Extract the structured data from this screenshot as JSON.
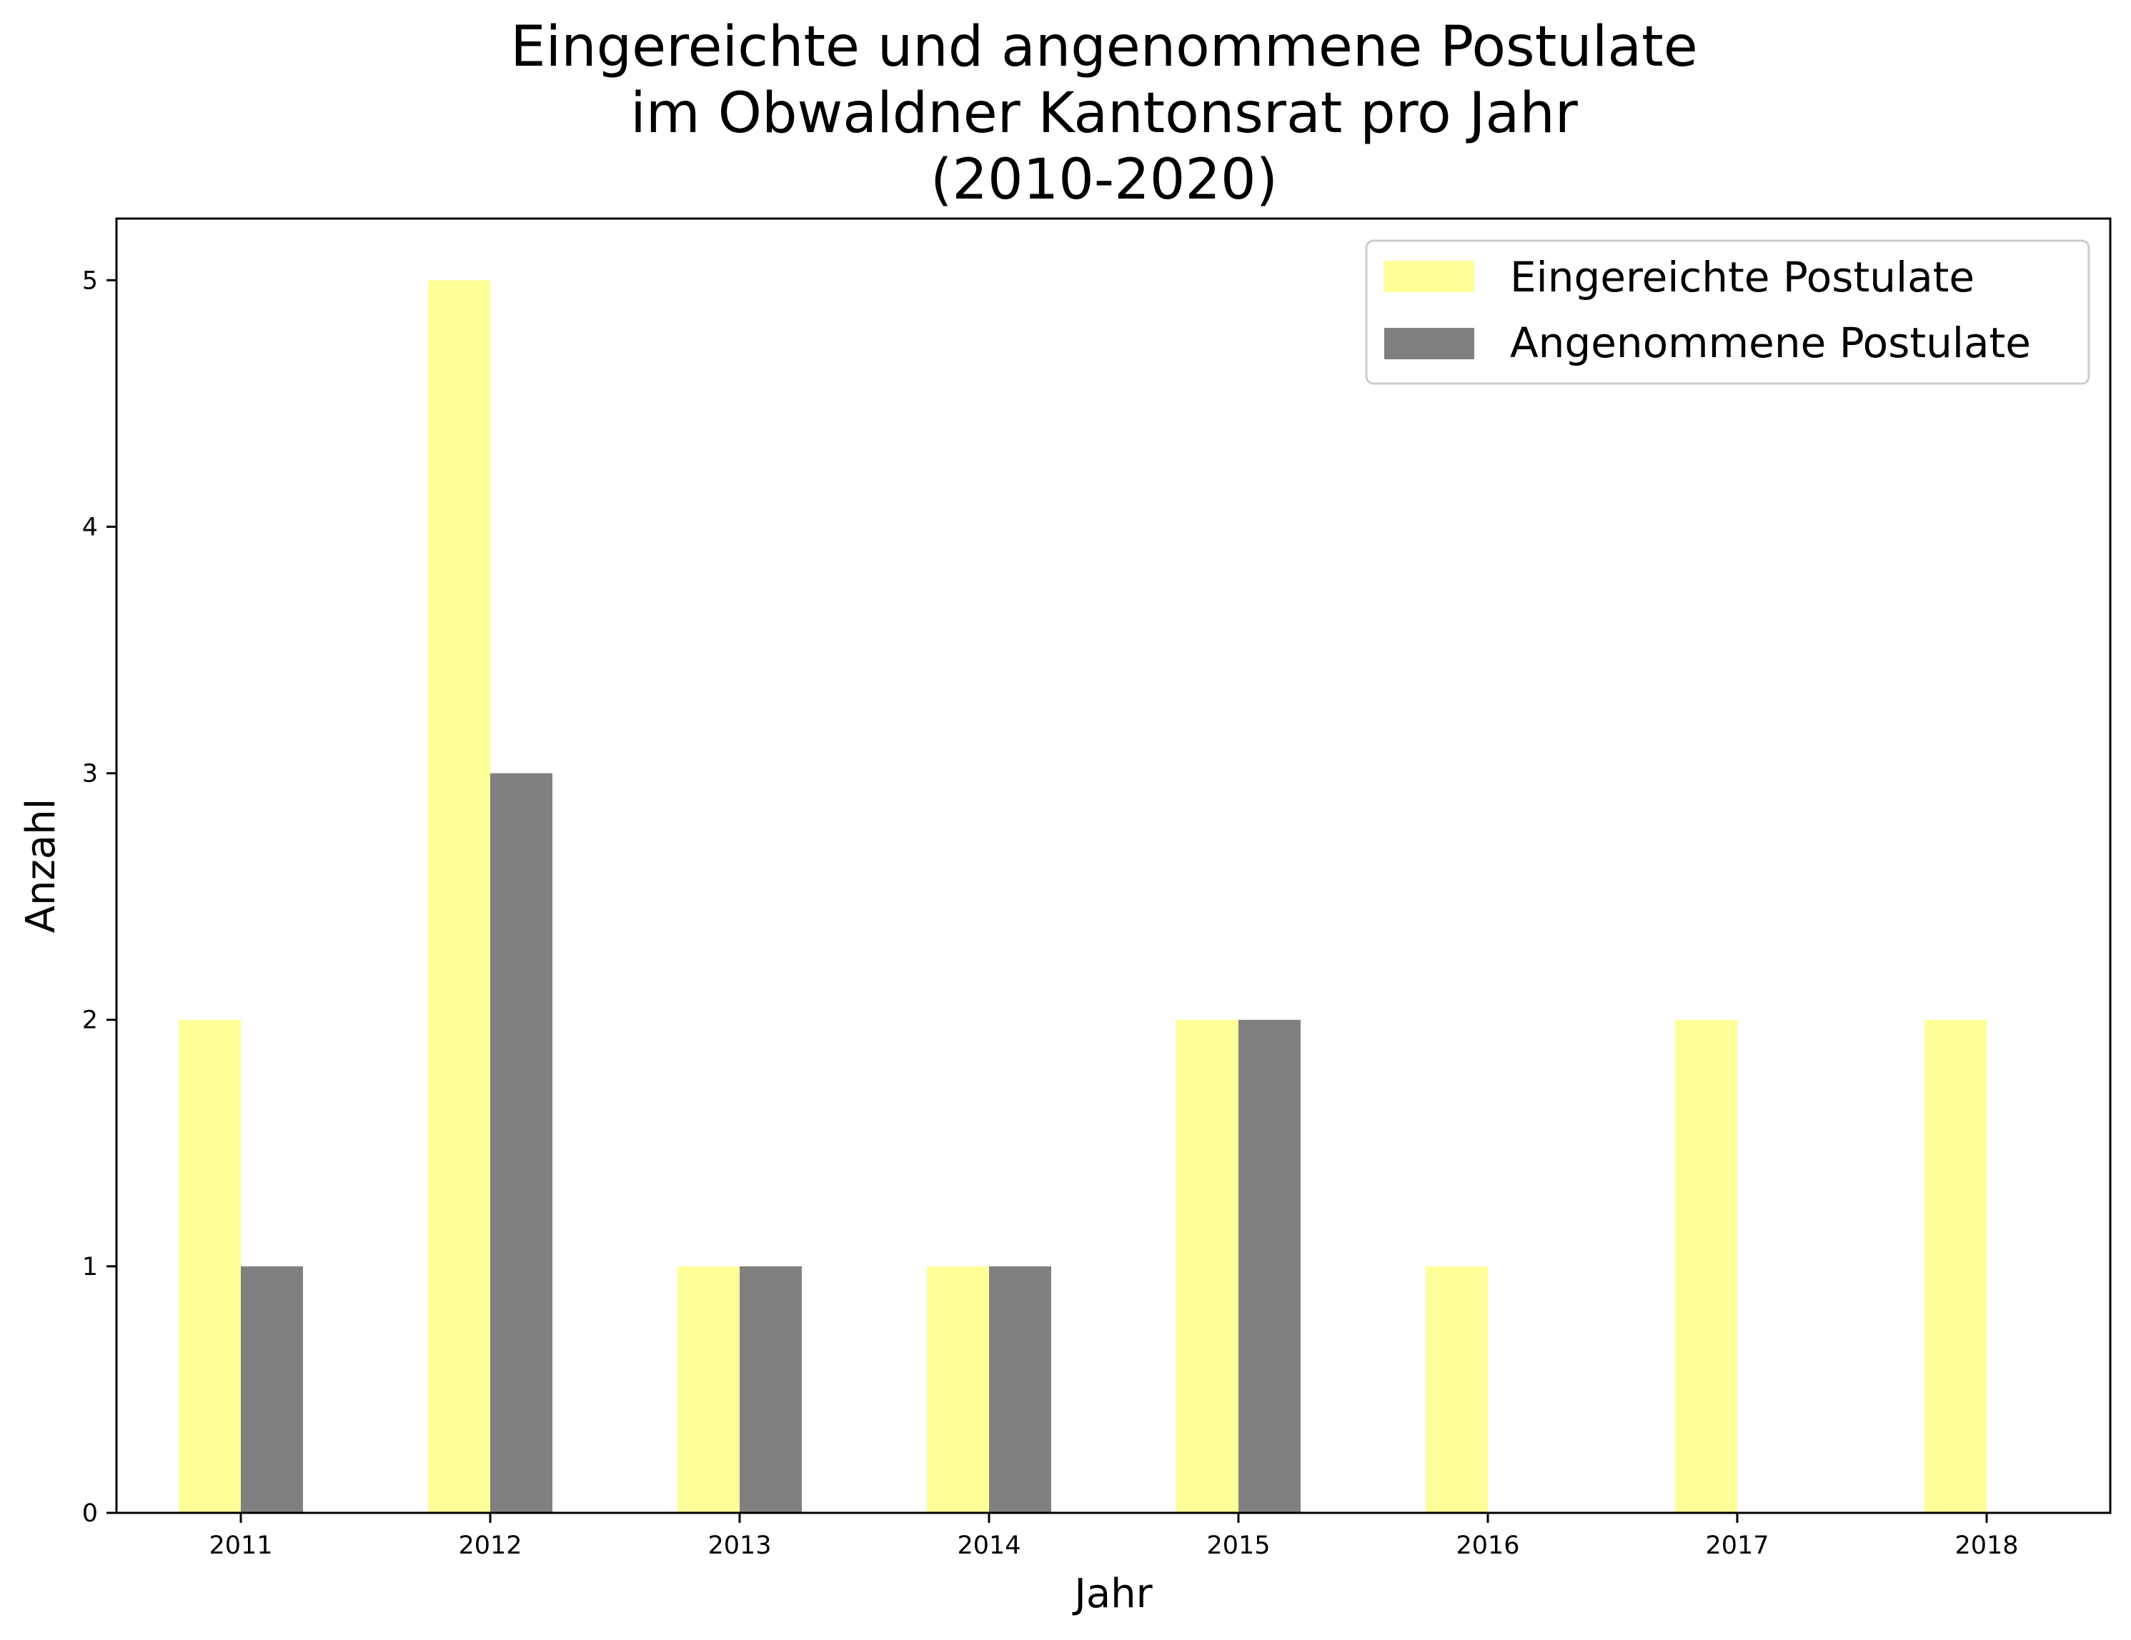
{
  "chart_data": {
    "type": "bar",
    "title_lines": [
      "Eingereichte und angenommene Postulate",
      "im Obwaldner Kantonsrat pro Jahr",
      "(2010-2020)"
    ],
    "xlabel": "Jahr",
    "ylabel": "Anzahl",
    "categories": [
      "2011",
      "2012",
      "2013",
      "2014",
      "2015",
      "2016",
      "2017",
      "2018"
    ],
    "series": [
      {
        "name": "Eingereichte Postulate",
        "color": "#ffff99",
        "values": [
          2,
          5,
          1,
          1,
          2,
          1,
          2,
          2
        ]
      },
      {
        "name": "Angenommene Postulate",
        "color": "#808080",
        "values": [
          1,
          3,
          1,
          1,
          2,
          0,
          0,
          0
        ]
      }
    ],
    "yticks": [
      "0",
      "1",
      "2",
      "3",
      "4",
      "5"
    ],
    "ylim": [
      0,
      5.25
    ],
    "grid": false,
    "legend_position": "top-right"
  }
}
